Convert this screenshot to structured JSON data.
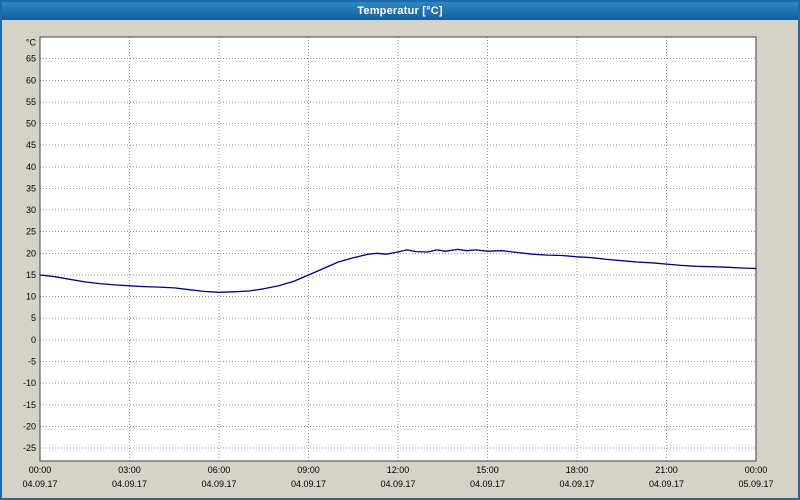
{
  "window": {
    "title": "Temperatur [°C]"
  },
  "chart_data": {
    "type": "line",
    "title": "Temperatur [°C]",
    "xlabel": "",
    "ylabel": "°C",
    "grid": true,
    "legend": "none",
    "xlim": [
      0,
      24
    ],
    "ylim": [
      -28,
      70
    ],
    "y_ticks": [
      65,
      60,
      55,
      50,
      45,
      40,
      35,
      30,
      25,
      20,
      15,
      10,
      5,
      0,
      -5,
      -10,
      -15,
      -20,
      -25
    ],
    "x_ticks": [
      {
        "hour": 0,
        "time": "00:00",
        "date": "04.09.17"
      },
      {
        "hour": 3,
        "time": "03:00",
        "date": "04.09.17"
      },
      {
        "hour": 6,
        "time": "06:00",
        "date": "04.09.17"
      },
      {
        "hour": 9,
        "time": "09:00",
        "date": "04.09.17"
      },
      {
        "hour": 12,
        "time": "12:00",
        "date": "04.09.17"
      },
      {
        "hour": 15,
        "time": "15:00",
        "date": "04.09.17"
      },
      {
        "hour": 18,
        "time": "18:00",
        "date": "04.09.17"
      },
      {
        "hour": 21,
        "time": "21:00",
        "date": "04.09.17"
      },
      {
        "hour": 24,
        "time": "00:00",
        "date": "05.09.17"
      }
    ],
    "colors": {
      "titlebar": "#1a6aad",
      "window_bg": "#d6d2c6",
      "plot_bg": "#ffffff",
      "grid": "#9a9a9a",
      "border": "#404040",
      "line": "#000080",
      "text": "#000000"
    },
    "series": [
      {
        "name": "Temperatur",
        "unit": "°C",
        "points": [
          [
            0.0,
            15.0
          ],
          [
            0.5,
            14.6
          ],
          [
            1.0,
            14.0
          ],
          [
            1.5,
            13.4
          ],
          [
            2.0,
            13.0
          ],
          [
            2.5,
            12.7
          ],
          [
            3.0,
            12.5
          ],
          [
            3.5,
            12.3
          ],
          [
            4.0,
            12.2
          ],
          [
            4.5,
            12.0
          ],
          [
            5.0,
            11.6
          ],
          [
            5.5,
            11.2
          ],
          [
            6.0,
            11.0
          ],
          [
            6.5,
            11.1
          ],
          [
            7.0,
            11.3
          ],
          [
            7.5,
            11.8
          ],
          [
            8.0,
            12.5
          ],
          [
            8.5,
            13.5
          ],
          [
            9.0,
            15.0
          ],
          [
            9.5,
            16.5
          ],
          [
            10.0,
            18.0
          ],
          [
            10.5,
            19.0
          ],
          [
            11.0,
            19.8
          ],
          [
            11.3,
            20.0
          ],
          [
            11.6,
            19.8
          ],
          [
            12.0,
            20.3
          ],
          [
            12.3,
            20.8
          ],
          [
            12.6,
            20.4
          ],
          [
            13.0,
            20.3
          ],
          [
            13.3,
            20.8
          ],
          [
            13.6,
            20.5
          ],
          [
            14.0,
            20.9
          ],
          [
            14.3,
            20.6
          ],
          [
            14.6,
            20.8
          ],
          [
            15.0,
            20.5
          ],
          [
            15.5,
            20.6
          ],
          [
            16.0,
            20.2
          ],
          [
            16.5,
            19.8
          ],
          [
            17.0,
            19.6
          ],
          [
            17.5,
            19.5
          ],
          [
            18.0,
            19.2
          ],
          [
            18.5,
            19.0
          ],
          [
            19.0,
            18.6
          ],
          [
            19.5,
            18.3
          ],
          [
            20.0,
            18.0
          ],
          [
            20.5,
            17.8
          ],
          [
            21.0,
            17.5
          ],
          [
            21.5,
            17.2
          ],
          [
            22.0,
            17.0
          ],
          [
            22.5,
            16.9
          ],
          [
            23.0,
            16.8
          ],
          [
            23.5,
            16.6
          ],
          [
            24.0,
            16.5
          ]
        ]
      }
    ]
  }
}
